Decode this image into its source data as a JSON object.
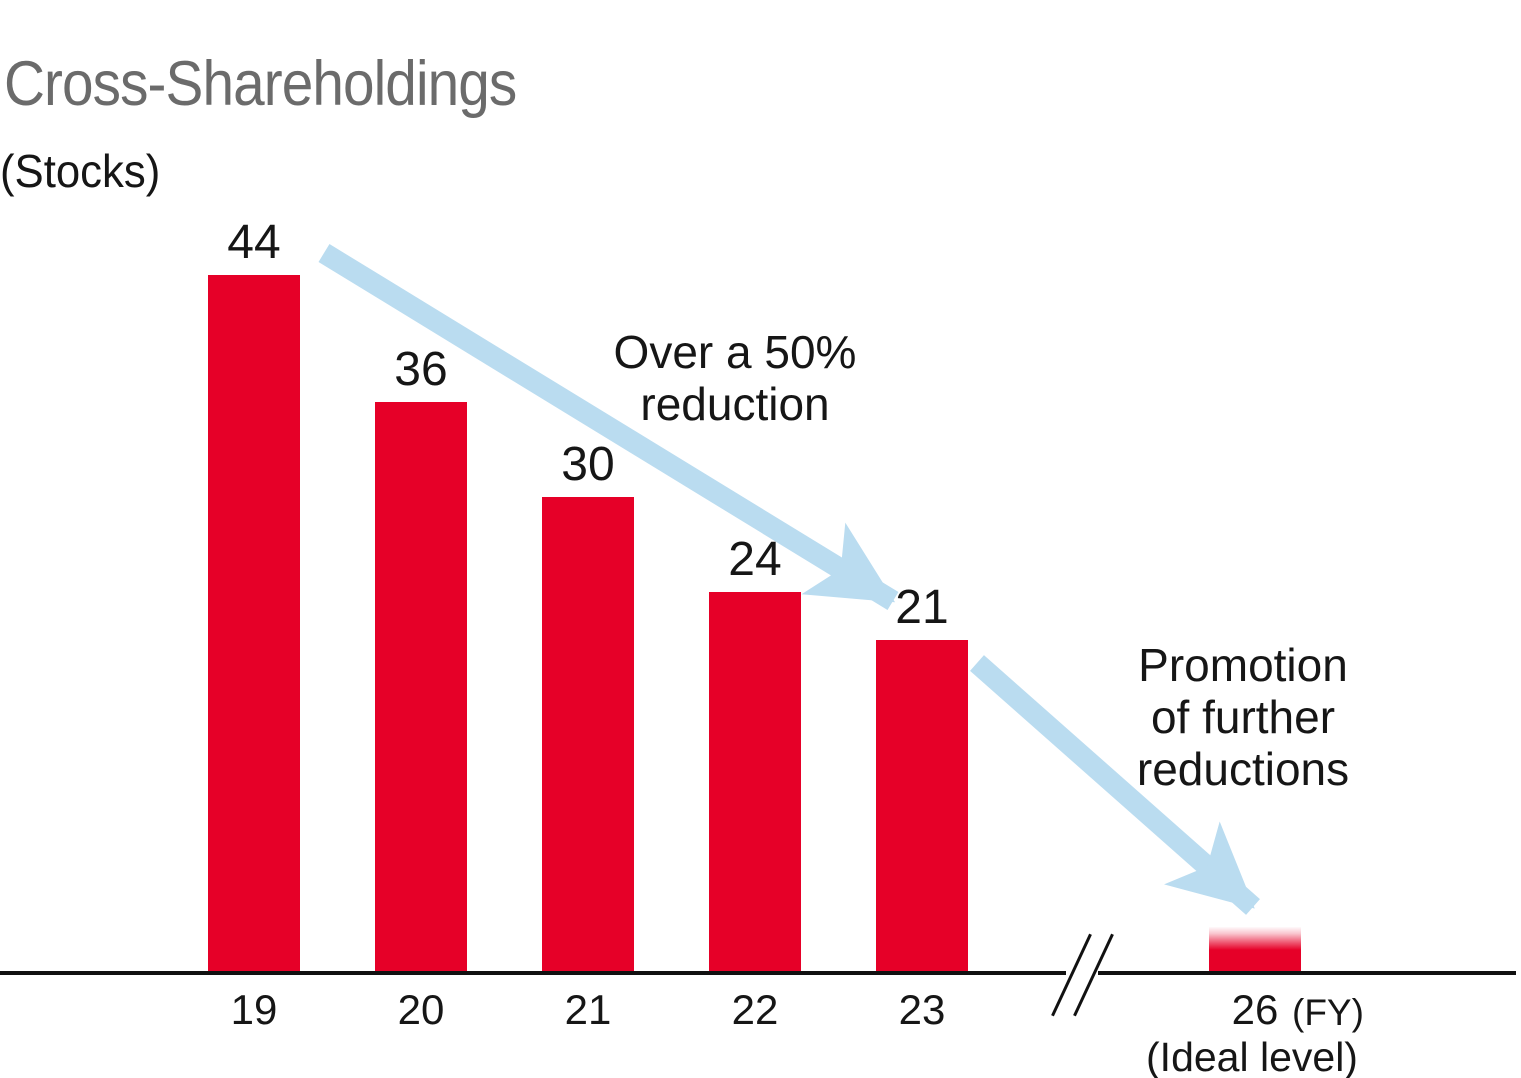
{
  "title": "Cross-Shareholdings",
  "unit_label": "(Stocks)",
  "annotations": {
    "reduction": "Over a 50%\nreduction",
    "promotion": "Promotion\nof further\nreductions"
  },
  "x_axis": {
    "suffix": "(FY)"
  },
  "colors": {
    "bar_red": "#e60028",
    "arrow_blue": "#badcf0",
    "title_gray": "#6b6b6b",
    "text_black": "#161616"
  },
  "chart_data": {
    "type": "bar",
    "title": "Cross-Shareholdings",
    "unit": "Stocks",
    "xlabel": "FY",
    "ylabel": "Stocks",
    "categories": [
      "19",
      "20",
      "21",
      "22",
      "23"
    ],
    "values": [
      44,
      36,
      30,
      24,
      21
    ],
    "ideal": {
      "category": "26",
      "caption": "(Ideal level)",
      "approx_value": 3,
      "bar_style": "gradient-fade-top"
    },
    "axis_break": true,
    "grid": false,
    "legend": false,
    "annotations": [
      "Over a 50% reduction",
      "Promotion of further reductions"
    ],
    "arrows": [
      {
        "from_category": "19",
        "to_category": "23",
        "meaning": "Over a 50% reduction"
      },
      {
        "from_category": "23",
        "to_category": "26",
        "meaning": "Promotion of further reductions"
      }
    ]
  }
}
